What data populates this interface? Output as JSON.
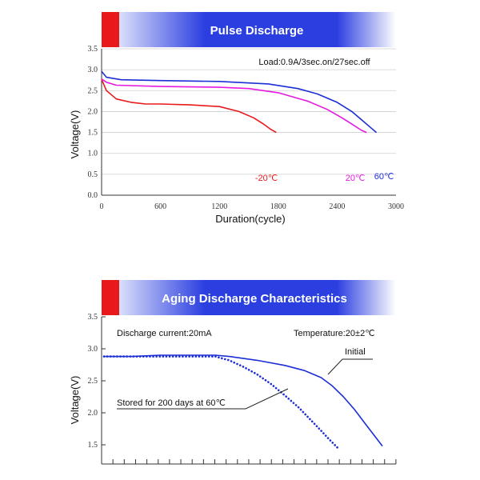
{
  "chart_data": [
    {
      "type": "line",
      "title": "Pulse Discharge",
      "annotation": "Load:0.9A/3sec.on/27sec.off",
      "xlabel": "Duration(cycle)",
      "ylabel": "Voltage(V)",
      "xlim": [
        0,
        3000
      ],
      "ylim": [
        0,
        3.5
      ],
      "xticks": [
        "0",
        "600",
        "1200",
        "1800",
        "2400",
        "3000"
      ],
      "yticks": [
        "0.0",
        "0.5",
        "1.0",
        "1.5",
        "2.0",
        "2.5",
        "3.0",
        "3.5"
      ],
      "grid": true,
      "series": [
        {
          "name": "-20℃",
          "color": "#e8191b",
          "x": [
            0,
            50,
            150,
            300,
            450,
            600,
            900,
            1200,
            1400,
            1550,
            1650,
            1720,
            1780
          ],
          "y": [
            2.77,
            2.5,
            2.3,
            2.22,
            2.18,
            2.18,
            2.16,
            2.12,
            2.0,
            1.85,
            1.7,
            1.58,
            1.5
          ]
        },
        {
          "name": "20℃",
          "color": "#e619e0",
          "x": [
            0,
            50,
            150,
            600,
            1200,
            1500,
            1800,
            2100,
            2300,
            2450,
            2550,
            2650,
            2700
          ],
          "y": [
            2.78,
            2.7,
            2.63,
            2.6,
            2.58,
            2.55,
            2.45,
            2.25,
            2.05,
            1.85,
            1.7,
            1.55,
            1.5
          ]
        },
        {
          "name": "60℃",
          "color": "#1c2fd6",
          "x": [
            0,
            50,
            200,
            600,
            1200,
            1700,
            2000,
            2200,
            2400,
            2550,
            2650,
            2750,
            2800
          ],
          "y": [
            2.96,
            2.82,
            2.76,
            2.74,
            2.72,
            2.66,
            2.55,
            2.42,
            2.22,
            2.0,
            1.8,
            1.6,
            1.5
          ]
        }
      ],
      "series_labels": [
        "-20℃",
        "20℃",
        "60℃"
      ]
    },
    {
      "type": "line",
      "title": "Aging Discharge Characteristics",
      "annotation_left": "Discharge current:20mA",
      "annotation_right": "Temperature:20±2℃",
      "ylabel": "Voltage(V)",
      "ylim": [
        1.2,
        3.5
      ],
      "yticks": [
        "1.5",
        "2.0",
        "2.5",
        "3.0",
        "3.5"
      ],
      "grid": false,
      "series": [
        {
          "name": "Initial",
          "color": "#1c2fd6",
          "style": "solid",
          "x": [
            0,
            0.1,
            0.2,
            0.3,
            0.4,
            0.45,
            0.55,
            0.65,
            0.72,
            0.78,
            0.82,
            0.86,
            0.9,
            0.94,
            0.97,
            1.0
          ],
          "y": [
            2.88,
            2.88,
            2.9,
            2.9,
            2.9,
            2.88,
            2.82,
            2.74,
            2.66,
            2.55,
            2.42,
            2.25,
            2.05,
            1.82,
            1.65,
            1.48
          ]
        },
        {
          "name": "Stored for 200 days at 60℃",
          "color": "#1c2fd6",
          "style": "dotted",
          "x": [
            0,
            0.1,
            0.2,
            0.3,
            0.4,
            0.45,
            0.5,
            0.55,
            0.6,
            0.65,
            0.7,
            0.74,
            0.78,
            0.81,
            0.84
          ],
          "y": [
            2.88,
            2.88,
            2.88,
            2.88,
            2.88,
            2.82,
            2.72,
            2.6,
            2.45,
            2.27,
            2.08,
            1.9,
            1.72,
            1.58,
            1.45
          ]
        }
      ]
    }
  ]
}
